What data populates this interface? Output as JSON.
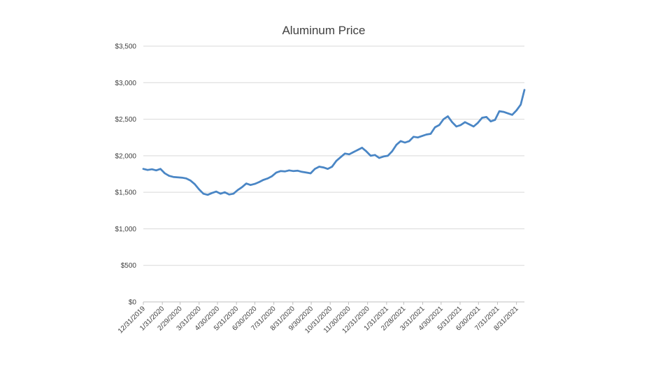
{
  "chart_data": {
    "type": "line",
    "title": "Aluminum Price",
    "xlabel": "",
    "ylabel": "",
    "ylim": [
      0,
      3500
    ],
    "y_ticks": [
      0,
      500,
      1000,
      1500,
      2000,
      2500,
      3000,
      3500
    ],
    "y_tick_labels": [
      "$0",
      "$500",
      "$1,000",
      "$1,500",
      "$2,000",
      "$2,500",
      "$3,000",
      "$3,500"
    ],
    "x_range": [
      "2019-12-31",
      "2021-09-13"
    ],
    "x_ticks": [
      "2019-12-31",
      "2020-01-31",
      "2020-02-29",
      "2020-03-31",
      "2020-04-30",
      "2020-05-31",
      "2020-06-30",
      "2020-07-31",
      "2020-08-31",
      "2020-09-30",
      "2020-10-31",
      "2020-11-30",
      "2020-12-31",
      "2021-01-31",
      "2021-02-28",
      "2021-03-31",
      "2021-04-30",
      "2021-05-31",
      "2021-06-30",
      "2021-07-31",
      "2021-08-31"
    ],
    "x_tick_labels": [
      "12/31/2019",
      "1/31/2020",
      "2/29/2020",
      "3/31/2020",
      "4/30/2020",
      "5/31/2020",
      "6/30/2020",
      "7/31/2020",
      "8/31/2020",
      "9/30/2020",
      "10/31/2020",
      "11/30/2020",
      "12/31/2020",
      "1/31/2021",
      "2/28/2021",
      "3/31/2021",
      "4/30/2021",
      "5/31/2021",
      "6/30/2021",
      "7/31/2021",
      "8/31/2021"
    ],
    "grid": true,
    "legend": "none",
    "series_color": "#4a86c5",
    "series": [
      {
        "x": [
          "2019-12-31",
          "2020-01-07",
          "2020-01-14",
          "2020-01-21",
          "2020-01-28",
          "2020-02-04",
          "2020-02-11",
          "2020-02-18",
          "2020-02-25",
          "2020-03-03",
          "2020-03-10",
          "2020-03-17",
          "2020-03-24",
          "2020-03-31",
          "2020-04-07",
          "2020-04-14",
          "2020-04-21",
          "2020-04-28",
          "2020-05-05",
          "2020-05-12",
          "2020-05-19",
          "2020-05-26",
          "2020-06-02",
          "2020-06-09",
          "2020-06-16",
          "2020-06-23",
          "2020-06-30",
          "2020-07-07",
          "2020-07-14",
          "2020-07-21",
          "2020-07-28",
          "2020-08-04",
          "2020-08-11",
          "2020-08-18",
          "2020-08-25",
          "2020-09-01",
          "2020-09-08",
          "2020-09-15",
          "2020-09-22",
          "2020-09-29",
          "2020-10-06",
          "2020-10-13",
          "2020-10-20",
          "2020-10-27",
          "2020-11-03",
          "2020-11-10",
          "2020-11-17",
          "2020-11-24",
          "2020-12-01",
          "2020-12-08",
          "2020-12-15",
          "2020-12-22",
          "2020-12-29",
          "2021-01-05",
          "2021-01-12",
          "2021-01-19",
          "2021-01-26",
          "2021-02-02",
          "2021-02-09",
          "2021-02-16",
          "2021-02-23",
          "2021-03-02",
          "2021-03-09",
          "2021-03-16",
          "2021-03-23",
          "2021-03-30",
          "2021-04-06",
          "2021-04-13",
          "2021-04-20",
          "2021-04-27",
          "2021-05-04",
          "2021-05-11",
          "2021-05-18",
          "2021-05-25",
          "2021-06-01",
          "2021-06-08",
          "2021-06-15",
          "2021-06-22",
          "2021-06-29",
          "2021-07-06",
          "2021-07-13",
          "2021-07-20",
          "2021-07-27",
          "2021-08-03",
          "2021-08-10",
          "2021-08-17",
          "2021-08-24",
          "2021-08-31",
          "2021-09-07",
          "2021-09-13"
        ],
        "values": [
          1820,
          1805,
          1815,
          1800,
          1820,
          1760,
          1725,
          1710,
          1705,
          1700,
          1690,
          1660,
          1610,
          1540,
          1480,
          1465,
          1490,
          1510,
          1480,
          1500,
          1470,
          1480,
          1530,
          1570,
          1620,
          1600,
          1615,
          1640,
          1670,
          1690,
          1720,
          1770,
          1790,
          1785,
          1800,
          1790,
          1795,
          1780,
          1770,
          1760,
          1820,
          1850,
          1840,
          1820,
          1850,
          1930,
          1980,
          2030,
          2020,
          2050,
          2080,
          2110,
          2060,
          2000,
          2010,
          1970,
          1990,
          2000,
          2060,
          2150,
          2200,
          2180,
          2200,
          2260,
          2250,
          2270,
          2290,
          2300,
          2390,
          2420,
          2500,
          2540,
          2460,
          2400,
          2420,
          2460,
          2430,
          2400,
          2450,
          2520,
          2530,
          2470,
          2490,
          2610,
          2600,
          2580,
          2560,
          2620,
          2700,
          2900
        ]
      }
    ]
  }
}
